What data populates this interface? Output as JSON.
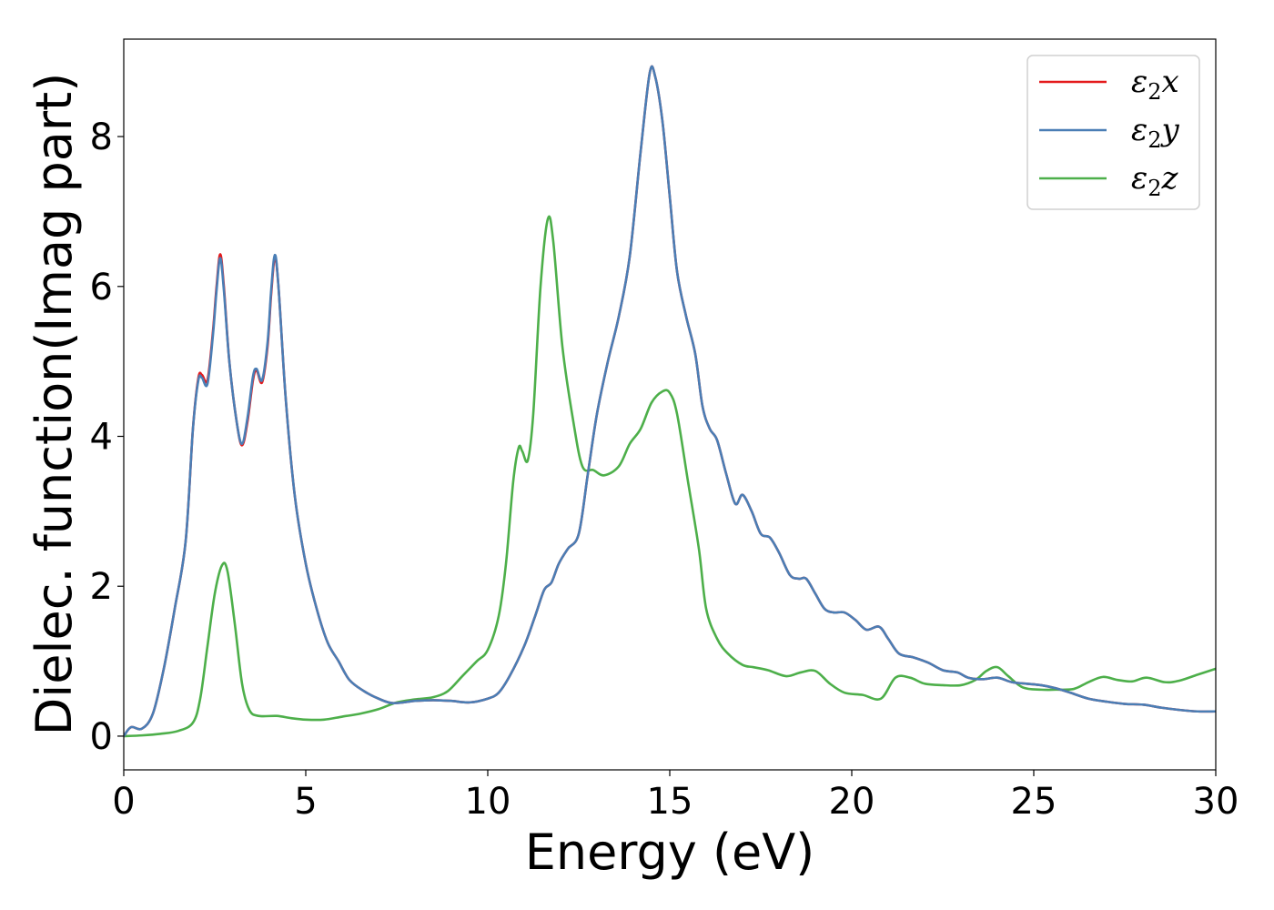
{
  "chart_data": {
    "type": "line",
    "xlabel": "Energy (eV)",
    "ylabel": "Dielec. function(Imag part)",
    "xlim": [
      0,
      30
    ],
    "ylim": [
      -0.45,
      9.3
    ],
    "xticks": [
      0,
      5,
      10,
      15,
      20,
      25,
      30
    ],
    "yticks": [
      0,
      2,
      4,
      6,
      8
    ],
    "grid": false,
    "legend_position": "top-right",
    "series": [
      {
        "name": "ε2x",
        "label_base": "ε",
        "label_sub": "2",
        "label_tail": "x",
        "color": "#e41a1c",
        "points": [
          [
            0,
            0
          ],
          [
            0.2,
            0.12
          ],
          [
            0.5,
            0.1
          ],
          [
            0.8,
            0.3
          ],
          [
            1.1,
            0.9
          ],
          [
            1.4,
            1.7
          ],
          [
            1.7,
            2.6
          ],
          [
            1.9,
            4.1
          ],
          [
            2.05,
            4.78
          ],
          [
            2.15,
            4.82
          ],
          [
            2.3,
            4.75
          ],
          [
            2.45,
            5.4
          ],
          [
            2.55,
            6.0
          ],
          [
            2.65,
            6.43
          ],
          [
            2.75,
            6.0
          ],
          [
            2.9,
            5.0
          ],
          [
            3.1,
            4.2
          ],
          [
            3.25,
            3.88
          ],
          [
            3.4,
            4.2
          ],
          [
            3.55,
            4.75
          ],
          [
            3.65,
            4.88
          ],
          [
            3.8,
            4.72
          ],
          [
            3.95,
            5.2
          ],
          [
            4.05,
            5.9
          ],
          [
            4.15,
            6.38
          ],
          [
            4.25,
            6.0
          ],
          [
            4.45,
            4.5
          ],
          [
            4.7,
            3.2
          ],
          [
            5.0,
            2.3
          ],
          [
            5.3,
            1.7
          ],
          [
            5.6,
            1.25
          ],
          [
            5.9,
            1.0
          ],
          [
            6.2,
            0.75
          ],
          [
            6.6,
            0.6
          ],
          [
            7.0,
            0.5
          ],
          [
            7.4,
            0.44
          ],
          [
            8.0,
            0.47
          ],
          [
            8.5,
            0.48
          ],
          [
            9.0,
            0.47
          ],
          [
            9.5,
            0.45
          ],
          [
            10.0,
            0.5
          ],
          [
            10.3,
            0.58
          ],
          [
            10.6,
            0.8
          ],
          [
            11.0,
            1.2
          ],
          [
            11.3,
            1.6
          ],
          [
            11.55,
            1.95
          ],
          [
            11.75,
            2.05
          ],
          [
            11.95,
            2.3
          ],
          [
            12.2,
            2.5
          ],
          [
            12.5,
            2.7
          ],
          [
            12.75,
            3.5
          ],
          [
            13.0,
            4.3
          ],
          [
            13.3,
            5.0
          ],
          [
            13.6,
            5.6
          ],
          [
            13.9,
            6.4
          ],
          [
            14.2,
            7.8
          ],
          [
            14.45,
            8.85
          ],
          [
            14.6,
            8.8
          ],
          [
            14.8,
            8.2
          ],
          [
            15.0,
            7.2
          ],
          [
            15.2,
            6.2
          ],
          [
            15.45,
            5.6
          ],
          [
            15.7,
            5.1
          ],
          [
            15.9,
            4.4
          ],
          [
            16.1,
            4.1
          ],
          [
            16.3,
            3.95
          ],
          [
            16.55,
            3.5
          ],
          [
            16.8,
            3.1
          ],
          [
            17.0,
            3.22
          ],
          [
            17.25,
            3.0
          ],
          [
            17.5,
            2.7
          ],
          [
            17.75,
            2.65
          ],
          [
            18.0,
            2.45
          ],
          [
            18.3,
            2.15
          ],
          [
            18.55,
            2.1
          ],
          [
            18.75,
            2.1
          ],
          [
            19.0,
            1.9
          ],
          [
            19.25,
            1.7
          ],
          [
            19.5,
            1.65
          ],
          [
            19.8,
            1.65
          ],
          [
            20.1,
            1.55
          ],
          [
            20.4,
            1.42
          ],
          [
            20.75,
            1.46
          ],
          [
            21.0,
            1.3
          ],
          [
            21.3,
            1.1
          ],
          [
            21.7,
            1.05
          ],
          [
            22.1,
            0.98
          ],
          [
            22.5,
            0.88
          ],
          [
            22.9,
            0.85
          ],
          [
            23.2,
            0.78
          ],
          [
            23.6,
            0.76
          ],
          [
            24.0,
            0.78
          ],
          [
            24.4,
            0.72
          ],
          [
            24.8,
            0.7
          ],
          [
            25.2,
            0.68
          ],
          [
            25.6,
            0.64
          ],
          [
            26.0,
            0.58
          ],
          [
            26.5,
            0.5
          ],
          [
            27.0,
            0.46
          ],
          [
            27.5,
            0.43
          ],
          [
            28.0,
            0.42
          ],
          [
            28.5,
            0.38
          ],
          [
            29.0,
            0.35
          ],
          [
            29.5,
            0.33
          ],
          [
            30.0,
            0.33
          ]
        ]
      },
      {
        "name": "ε2y",
        "label_base": "ε",
        "label_sub": "2",
        "label_tail": "y",
        "color": "#4a7eb5",
        "points": [
          [
            0,
            0
          ],
          [
            0.2,
            0.12
          ],
          [
            0.5,
            0.1
          ],
          [
            0.8,
            0.3
          ],
          [
            1.1,
            0.9
          ],
          [
            1.4,
            1.7
          ],
          [
            1.7,
            2.6
          ],
          [
            1.9,
            4.1
          ],
          [
            2.05,
            4.75
          ],
          [
            2.15,
            4.78
          ],
          [
            2.3,
            4.7
          ],
          [
            2.45,
            5.35
          ],
          [
            2.55,
            5.95
          ],
          [
            2.65,
            6.38
          ],
          [
            2.75,
            5.95
          ],
          [
            2.9,
            5.0
          ],
          [
            3.1,
            4.2
          ],
          [
            3.25,
            3.9
          ],
          [
            3.4,
            4.25
          ],
          [
            3.55,
            4.8
          ],
          [
            3.65,
            4.9
          ],
          [
            3.8,
            4.75
          ],
          [
            3.95,
            5.25
          ],
          [
            4.05,
            5.95
          ],
          [
            4.15,
            6.42
          ],
          [
            4.25,
            6.0
          ],
          [
            4.45,
            4.5
          ],
          [
            4.7,
            3.2
          ],
          [
            5.0,
            2.3
          ],
          [
            5.3,
            1.7
          ],
          [
            5.6,
            1.25
          ],
          [
            5.9,
            1.0
          ],
          [
            6.2,
            0.75
          ],
          [
            6.6,
            0.6
          ],
          [
            7.0,
            0.5
          ],
          [
            7.4,
            0.44
          ],
          [
            8.0,
            0.47
          ],
          [
            8.5,
            0.48
          ],
          [
            9.0,
            0.47
          ],
          [
            9.5,
            0.45
          ],
          [
            10.0,
            0.5
          ],
          [
            10.3,
            0.58
          ],
          [
            10.6,
            0.8
          ],
          [
            11.0,
            1.2
          ],
          [
            11.3,
            1.6
          ],
          [
            11.55,
            1.95
          ],
          [
            11.75,
            2.05
          ],
          [
            11.95,
            2.3
          ],
          [
            12.2,
            2.5
          ],
          [
            12.5,
            2.7
          ],
          [
            12.75,
            3.5
          ],
          [
            13.0,
            4.3
          ],
          [
            13.3,
            5.0
          ],
          [
            13.6,
            5.6
          ],
          [
            13.9,
            6.4
          ],
          [
            14.2,
            7.8
          ],
          [
            14.45,
            8.85
          ],
          [
            14.6,
            8.8
          ],
          [
            14.8,
            8.2
          ],
          [
            15.0,
            7.2
          ],
          [
            15.2,
            6.2
          ],
          [
            15.45,
            5.6
          ],
          [
            15.7,
            5.1
          ],
          [
            15.9,
            4.4
          ],
          [
            16.1,
            4.1
          ],
          [
            16.3,
            3.95
          ],
          [
            16.55,
            3.5
          ],
          [
            16.8,
            3.1
          ],
          [
            17.0,
            3.22
          ],
          [
            17.25,
            3.0
          ],
          [
            17.5,
            2.7
          ],
          [
            17.75,
            2.65
          ],
          [
            18.0,
            2.45
          ],
          [
            18.3,
            2.15
          ],
          [
            18.55,
            2.1
          ],
          [
            18.75,
            2.1
          ],
          [
            19.0,
            1.9
          ],
          [
            19.25,
            1.7
          ],
          [
            19.5,
            1.65
          ],
          [
            19.8,
            1.65
          ],
          [
            20.1,
            1.55
          ],
          [
            20.4,
            1.42
          ],
          [
            20.75,
            1.46
          ],
          [
            21.0,
            1.3
          ],
          [
            21.3,
            1.1
          ],
          [
            21.7,
            1.05
          ],
          [
            22.1,
            0.98
          ],
          [
            22.5,
            0.88
          ],
          [
            22.9,
            0.85
          ],
          [
            23.2,
            0.78
          ],
          [
            23.6,
            0.76
          ],
          [
            24.0,
            0.78
          ],
          [
            24.4,
            0.72
          ],
          [
            24.8,
            0.7
          ],
          [
            25.2,
            0.68
          ],
          [
            25.6,
            0.64
          ],
          [
            26.0,
            0.58
          ],
          [
            26.5,
            0.5
          ],
          [
            27.0,
            0.46
          ],
          [
            27.5,
            0.43
          ],
          [
            28.0,
            0.42
          ],
          [
            28.5,
            0.38
          ],
          [
            29.0,
            0.35
          ],
          [
            29.5,
            0.33
          ],
          [
            30.0,
            0.33
          ]
        ]
      },
      {
        "name": "ε2z",
        "label_base": "ε",
        "label_sub": "2",
        "label_tail": "z",
        "color": "#4daf4a",
        "points": [
          [
            0,
            0
          ],
          [
            0.5,
            0.01
          ],
          [
            1.0,
            0.03
          ],
          [
            1.5,
            0.07
          ],
          [
            1.9,
            0.18
          ],
          [
            2.1,
            0.5
          ],
          [
            2.3,
            1.2
          ],
          [
            2.5,
            1.9
          ],
          [
            2.7,
            2.28
          ],
          [
            2.85,
            2.2
          ],
          [
            3.05,
            1.5
          ],
          [
            3.25,
            0.7
          ],
          [
            3.45,
            0.35
          ],
          [
            3.7,
            0.27
          ],
          [
            4.2,
            0.27
          ],
          [
            4.6,
            0.24
          ],
          [
            5.0,
            0.22
          ],
          [
            5.5,
            0.22
          ],
          [
            6.0,
            0.26
          ],
          [
            6.5,
            0.3
          ],
          [
            7.0,
            0.36
          ],
          [
            7.5,
            0.45
          ],
          [
            8.0,
            0.49
          ],
          [
            8.5,
            0.52
          ],
          [
            8.9,
            0.6
          ],
          [
            9.3,
            0.8
          ],
          [
            9.7,
            1.0
          ],
          [
            10.0,
            1.15
          ],
          [
            10.3,
            1.6
          ],
          [
            10.5,
            2.3
          ],
          [
            10.7,
            3.4
          ],
          [
            10.85,
            3.85
          ],
          [
            10.95,
            3.8
          ],
          [
            11.1,
            3.68
          ],
          [
            11.25,
            4.3
          ],
          [
            11.45,
            6.0
          ],
          [
            11.65,
            6.9
          ],
          [
            11.8,
            6.6
          ],
          [
            12.05,
            5.2
          ],
          [
            12.35,
            4.2
          ],
          [
            12.6,
            3.6
          ],
          [
            12.9,
            3.55
          ],
          [
            13.2,
            3.48
          ],
          [
            13.6,
            3.6
          ],
          [
            13.9,
            3.9
          ],
          [
            14.2,
            4.1
          ],
          [
            14.5,
            4.45
          ],
          [
            14.8,
            4.6
          ],
          [
            15.0,
            4.58
          ],
          [
            15.2,
            4.3
          ],
          [
            15.5,
            3.4
          ],
          [
            15.8,
            2.5
          ],
          [
            16.0,
            1.7
          ],
          [
            16.3,
            1.3
          ],
          [
            16.6,
            1.1
          ],
          [
            17.0,
            0.95
          ],
          [
            17.3,
            0.92
          ],
          [
            17.7,
            0.88
          ],
          [
            18.2,
            0.8
          ],
          [
            18.6,
            0.85
          ],
          [
            19.0,
            0.87
          ],
          [
            19.4,
            0.7
          ],
          [
            19.8,
            0.58
          ],
          [
            20.3,
            0.55
          ],
          [
            20.8,
            0.5
          ],
          [
            21.2,
            0.78
          ],
          [
            21.6,
            0.78
          ],
          [
            22.0,
            0.7
          ],
          [
            22.5,
            0.68
          ],
          [
            23.0,
            0.68
          ],
          [
            23.4,
            0.75
          ],
          [
            23.7,
            0.87
          ],
          [
            24.0,
            0.92
          ],
          [
            24.3,
            0.8
          ],
          [
            24.7,
            0.65
          ],
          [
            25.2,
            0.62
          ],
          [
            25.6,
            0.62
          ],
          [
            26.1,
            0.63
          ],
          [
            26.5,
            0.72
          ],
          [
            26.9,
            0.79
          ],
          [
            27.3,
            0.75
          ],
          [
            27.7,
            0.73
          ],
          [
            28.1,
            0.78
          ],
          [
            28.6,
            0.72
          ],
          [
            29.0,
            0.74
          ],
          [
            29.5,
            0.82
          ],
          [
            30.0,
            0.9
          ]
        ]
      }
    ]
  }
}
